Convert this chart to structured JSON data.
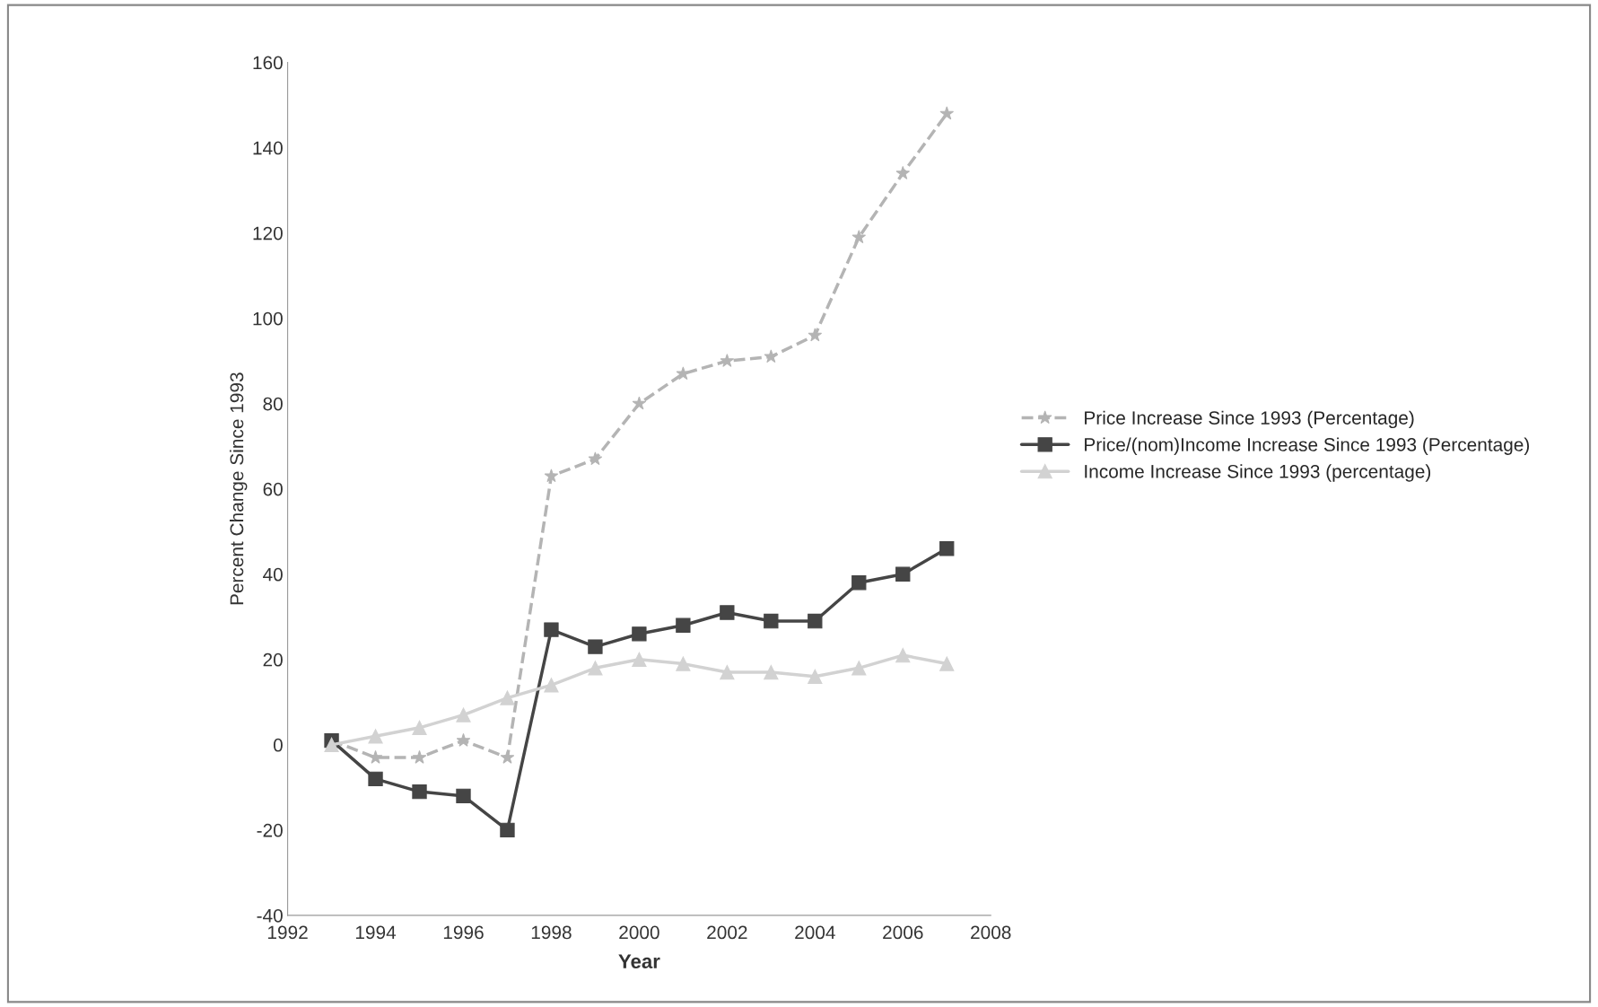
{
  "chart_data": {
    "type": "line",
    "xlabel": "Year",
    "ylabel": "Percent Change Since 1993",
    "x": [
      1993,
      1994,
      1995,
      1996,
      1997,
      1998,
      1999,
      2000,
      2001,
      2002,
      2003,
      2004,
      2005,
      2006,
      2007
    ],
    "xlim": [
      1992,
      2008
    ],
    "xticks": [
      1992,
      1994,
      1996,
      1998,
      2000,
      2002,
      2004,
      2006,
      2008
    ],
    "ylim": [
      -40,
      160
    ],
    "yticks": [
      -40,
      -20,
      0,
      20,
      40,
      60,
      80,
      100,
      120,
      140,
      160
    ],
    "grid": false,
    "legend": "right",
    "series": [
      {
        "name": "Price Increase Since 1993 (Percentage)",
        "color": "#b4b4b4",
        "marker": "star",
        "line_style": "dashed",
        "values": [
          1,
          -3,
          -3,
          1,
          -3,
          63,
          67,
          80,
          87,
          90,
          91,
          96,
          119,
          134,
          148
        ]
      },
      {
        "name": "Price/(nom)Income Increase Since 1993 (Percentage)",
        "color": "#454545",
        "marker": "square",
        "line_style": "solid",
        "values": [
          1,
          -8,
          -11,
          -12,
          -20,
          27,
          23,
          26,
          28,
          31,
          29,
          29,
          38,
          40,
          46
        ]
      },
      {
        "name": "Income Increase Since 1993 (percentage)",
        "color": "#d2d2d2",
        "marker": "triangle",
        "line_style": "solid",
        "values": [
          0,
          2,
          4,
          7,
          11,
          14,
          18,
          20,
          19,
          17,
          17,
          16,
          18,
          21,
          19
        ]
      }
    ]
  }
}
